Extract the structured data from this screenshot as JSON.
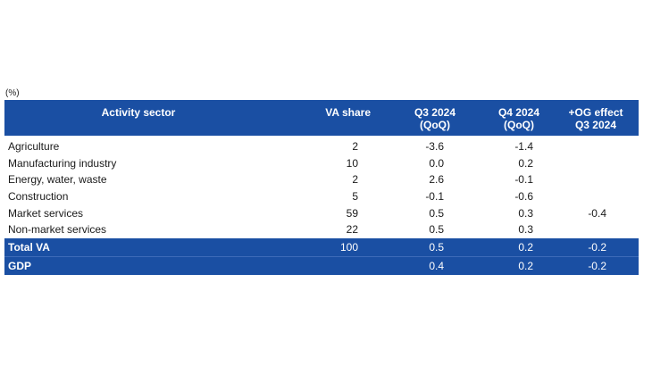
{
  "unit_label": "(%)",
  "header": {
    "sector": "Activity sector",
    "share": "VA share",
    "q3_line1": "Q3 2024",
    "q3_line2": "(QoQ)",
    "q4_line1": "Q4 2024",
    "q4_line2": "(QoQ)",
    "og_line1": "+OG effect",
    "og_line2": "Q3 2024"
  },
  "rows": [
    {
      "sector": "Agriculture",
      "share": "2",
      "q3": "-3.6",
      "q4": "-1.4",
      "og": ""
    },
    {
      "sector": "Manufacturing industry",
      "share": "10",
      "q3": "0.0",
      "q4": "0.2",
      "og": ""
    },
    {
      "sector": "Energy, water, waste",
      "share": "2",
      "q3": "2.6",
      "q4": "-0.1",
      "og": ""
    },
    {
      "sector": "Construction",
      "share": "5",
      "q3": "-0.1",
      "q4": "-0.6",
      "og": ""
    },
    {
      "sector": "Market services",
      "share": "59",
      "q3": "0.5",
      "q4": "0.3",
      "og": "-0.4"
    },
    {
      "sector": "Non-market services",
      "share": "22",
      "q3": "0.5",
      "q4": "0.3",
      "og": ""
    }
  ],
  "total": {
    "sector": "Total VA",
    "share": "100",
    "q3": "0.5",
    "q4": "0.2",
    "og": "-0.2"
  },
  "gdp": {
    "sector": "GDP",
    "share": "",
    "q3": "0.4",
    "q4": "0.2",
    "og": "-0.2"
  },
  "colors": {
    "header_bg": "#1a4fa3",
    "header_text": "#ffffff"
  }
}
